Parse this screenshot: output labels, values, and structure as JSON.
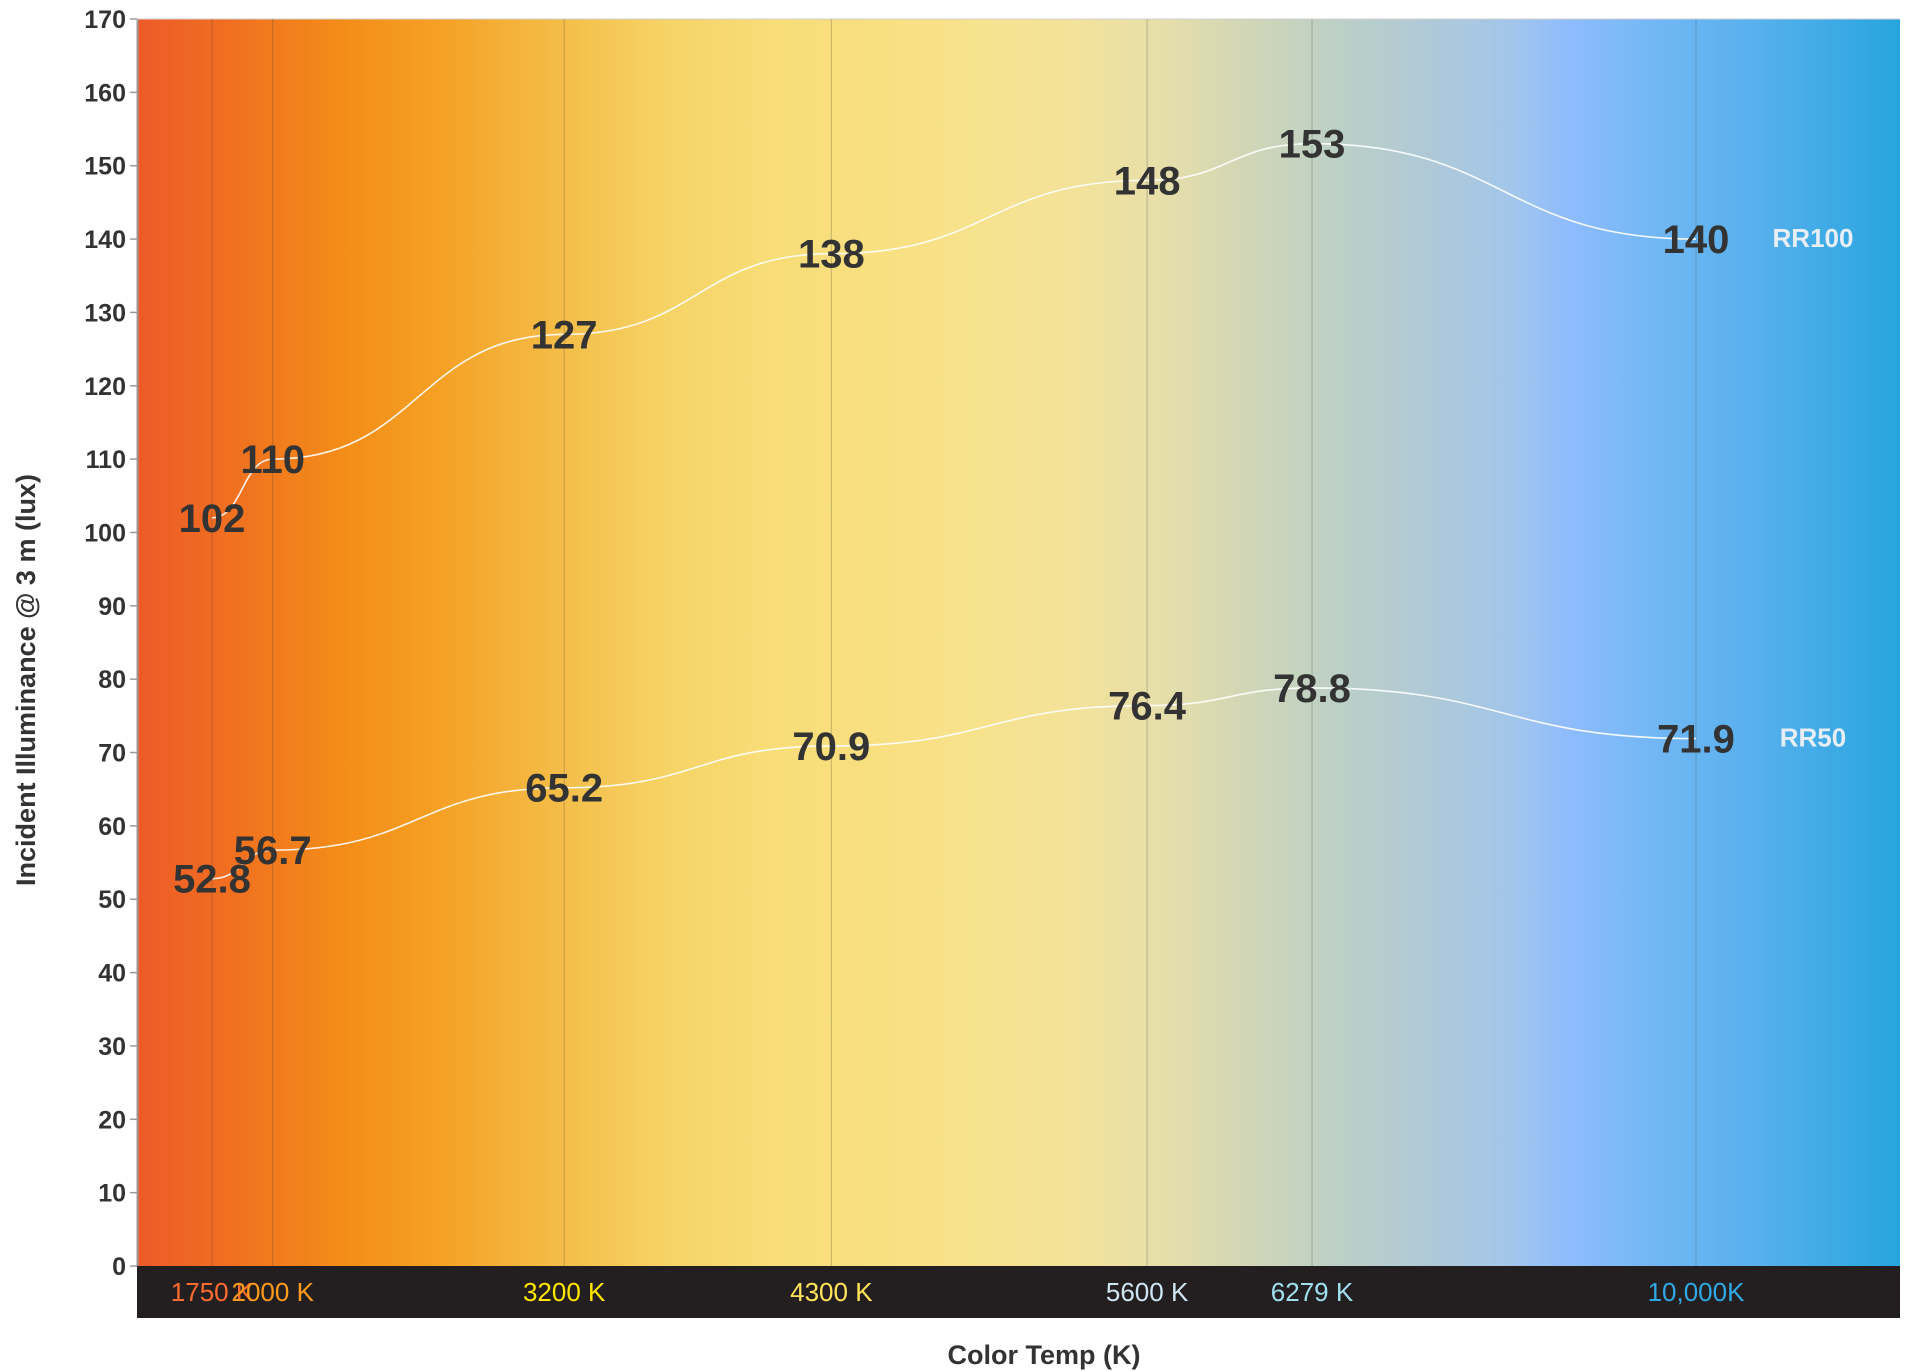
{
  "chart_data": {
    "type": "line",
    "xlabel": "Color Temp (K)",
    "ylabel": "Incident Illuminance @ 3 m (lux)",
    "ylim": [
      0,
      170
    ],
    "yticks": [
      0,
      10,
      20,
      30,
      40,
      50,
      60,
      70,
      80,
      90,
      100,
      110,
      120,
      130,
      140,
      150,
      160,
      170
    ],
    "grid": false,
    "legend": "none",
    "categories": [
      "1750 K",
      "2000 K",
      "3200 K",
      "4300 K",
      "5600 K",
      "6279 K",
      "10,000K"
    ],
    "category_colors": [
      "#ff6a2e",
      "#ff9a1c",
      "#ffe600",
      "#ffe45a",
      "#cfe6f2",
      "#9fe0ee",
      "#2fa8e4"
    ],
    "series": [
      {
        "name": "RR100",
        "values": [
          102,
          110,
          127,
          138,
          148,
          153,
          140
        ]
      },
      {
        "name": "RR50",
        "values": [
          52.8,
          56.7,
          65.2,
          70.9,
          76.4,
          78.8,
          71.9
        ]
      }
    ]
  }
}
